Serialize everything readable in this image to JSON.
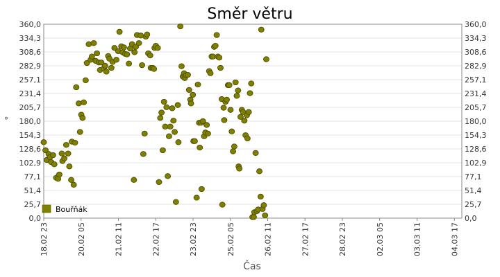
{
  "chart_data": {
    "type": "scatter",
    "title": "Směr větru",
    "xlabel": "Čas",
    "ylabel": "°",
    "ylim": [
      0,
      360
    ],
    "yticks": [
      "0,0",
      "25,7",
      "51,4",
      "77,1",
      "102,9",
      "128,6",
      "154,3",
      "180,0",
      "205,7",
      "231,4",
      "257,1",
      "282,9",
      "308,6",
      "334,3",
      "360,0"
    ],
    "x_tick_labels": [
      "18.02 23",
      "20.02 05",
      "21.02 11",
      "22.02 17",
      "23.02 23",
      "25.02 05",
      "26.02 11",
      "27.02 17",
      "28.02 23",
      "02.03 05",
      "03.03 11",
      "04.03 17"
    ],
    "x_tick_times": [
      "2023-02-18 23:00",
      "2023-02-20 05:00",
      "2023-02-21 11:00",
      "2023-02-22 17:00",
      "2023-02-23 23:00",
      "2023-02-25 05:00",
      "2023-02-26 11:00",
      "2023-02-27 17:00",
      "2023-02-28 23:00",
      "2023-03-02 05:00",
      "2023-03-03 11:00",
      "2023-03-04 17:00"
    ],
    "x_range": [
      "2023-02-18 23:00",
      "2023-03-04 23:00"
    ],
    "grid": true,
    "legend_position": "bottom-left",
    "series": [
      {
        "name": "Bouřňák",
        "color": "#808000",
        "points": [
          {
            "x": "2023-02-18 23:00",
            "y": 141
          },
          {
            "x": "2023-02-19 00:26",
            "y": 126
          },
          {
            "x": "2023-02-19 01:27",
            "y": 108
          },
          {
            "x": "2023-02-19 02:57",
            "y": 119
          },
          {
            "x": "2023-02-19 03:58",
            "y": 113
          },
          {
            "x": "2023-02-19 04:58",
            "y": 104
          },
          {
            "x": "2023-02-19 06:29",
            "y": 117
          },
          {
            "x": "2023-02-19 07:29",
            "y": 100
          },
          {
            "x": "2023-02-19 09:00",
            "y": 75
          },
          {
            "x": "2023-02-19 10:31",
            "y": 73
          },
          {
            "x": "2023-02-19 11:31",
            "y": 81
          },
          {
            "x": "2023-02-19 13:32",
            "y": 120
          },
          {
            "x": "2023-02-19 14:03",
            "y": 106
          },
          {
            "x": "2023-02-19 15:33",
            "y": 111
          },
          {
            "x": "2023-02-19 17:04",
            "y": 136
          },
          {
            "x": "2023-02-19 18:34",
            "y": 120
          },
          {
            "x": "2023-02-19 19:35",
            "y": 96
          },
          {
            "x": "2023-02-19 21:05",
            "y": 71
          },
          {
            "x": "2023-02-19 21:36",
            "y": 142
          },
          {
            "x": "2023-02-19 23:06",
            "y": 62
          },
          {
            "x": "2023-02-20 00:06",
            "y": 140
          },
          {
            "x": "2023-02-20 01:07",
            "y": 243
          },
          {
            "x": "2023-02-20 03:08",
            "y": 213
          },
          {
            "x": "2023-02-20 04:09",
            "y": 160
          },
          {
            "x": "2023-02-20 05:09",
            "y": 192
          },
          {
            "x": "2023-02-20 06:10",
            "y": 186
          },
          {
            "x": "2023-02-20 07:10",
            "y": 215
          },
          {
            "x": "2023-02-20 08:41",
            "y": 256
          },
          {
            "x": "2023-02-20 09:41",
            "y": 288
          },
          {
            "x": "2023-02-20 11:12",
            "y": 323
          },
          {
            "x": "2023-02-20 12:42",
            "y": 294
          },
          {
            "x": "2023-02-20 13:43",
            "y": 300
          },
          {
            "x": "2023-02-20 15:13",
            "y": 325
          },
          {
            "x": "2023-02-20 16:44",
            "y": 292
          },
          {
            "x": "2023-02-20 17:45",
            "y": 306
          },
          {
            "x": "2023-02-20 19:15",
            "y": 289
          },
          {
            "x": "2023-02-20 20:16",
            "y": 275
          },
          {
            "x": "2023-02-20 21:16",
            "y": 289
          },
          {
            "x": "2023-02-20 23:17",
            "y": 278
          },
          {
            "x": "2023-02-21 00:18",
            "y": 283
          },
          {
            "x": "2023-02-21 01:18",
            "y": 272
          },
          {
            "x": "2023-02-21 02:49",
            "y": 301
          },
          {
            "x": "2023-02-21 03:49",
            "y": 296
          },
          {
            "x": "2023-02-21 05:20",
            "y": 279
          },
          {
            "x": "2023-02-21 06:20",
            "y": 290
          },
          {
            "x": "2023-02-21 07:51",
            "y": 316
          },
          {
            "x": "2023-02-21 09:21",
            "y": 294
          },
          {
            "x": "2023-02-21 10:52",
            "y": 310
          },
          {
            "x": "2023-02-21 11:53",
            "y": 346
          },
          {
            "x": "2023-02-21 13:23",
            "y": 319
          },
          {
            "x": "2023-02-21 14:24",
            "y": 308
          },
          {
            "x": "2023-02-21 15:24",
            "y": 317
          },
          {
            "x": "2023-02-21 16:25",
            "y": 305
          },
          {
            "x": "2023-02-21 17:56",
            "y": 304
          },
          {
            "x": "2023-02-21 19:26",
            "y": 287
          },
          {
            "x": "2023-02-21 20:27",
            "y": 315
          },
          {
            "x": "2023-02-21 21:57",
            "y": 323
          },
          {
            "x": "2023-02-21 23:28",
            "y": 71
          },
          {
            "x": "2023-02-21 23:58",
            "y": 308
          },
          {
            "x": "2023-02-22 00:59",
            "y": 318
          },
          {
            "x": "2023-02-22 01:59",
            "y": 340
          },
          {
            "x": "2023-02-22 03:30",
            "y": 325
          },
          {
            "x": "2023-02-22 05:00",
            "y": 339
          },
          {
            "x": "2023-02-22 06:01",
            "y": 284
          },
          {
            "x": "2023-02-22 07:01",
            "y": 119
          },
          {
            "x": "2023-02-22 08:02",
            "y": 157
          },
          {
            "x": "2023-02-22 09:02",
            "y": 337
          },
          {
            "x": "2023-02-22 10:03",
            "y": 341
          },
          {
            "x": "2023-02-22 11:03",
            "y": 306
          },
          {
            "x": "2023-02-22 12:34",
            "y": 302
          },
          {
            "x": "2023-02-22 13:04",
            "y": 279
          },
          {
            "x": "2023-02-22 14:35",
            "y": 279
          },
          {
            "x": "2023-02-22 15:35",
            "y": 277
          },
          {
            "x": "2023-02-22 16:06",
            "y": 316
          },
          {
            "x": "2023-02-22 17:06",
            "y": 320
          },
          {
            "x": "2023-02-22 18:37",
            "y": 316
          },
          {
            "x": "2023-02-22 19:38",
            "y": 67
          },
          {
            "x": "2023-02-22 20:38",
            "y": 186
          },
          {
            "x": "2023-02-22 21:39",
            "y": 196
          },
          {
            "x": "2023-02-22 22:39",
            "y": 126
          },
          {
            "x": "2023-02-22 23:40",
            "y": 216
          },
          {
            "x": "2023-02-23 00:40",
            "y": 170
          },
          {
            "x": "2023-02-23 01:41",
            "y": 206
          },
          {
            "x": "2023-02-23 02:41",
            "y": 78
          },
          {
            "x": "2023-02-23 03:42",
            "y": 152
          },
          {
            "x": "2023-02-23 04:42",
            "y": 170
          },
          {
            "x": "2023-02-23 06:13",
            "y": 204
          },
          {
            "x": "2023-02-23 07:13",
            "y": 181
          },
          {
            "x": "2023-02-23 08:14",
            "y": 160
          },
          {
            "x": "2023-02-23 09:14",
            "y": 30
          },
          {
            "x": "2023-02-23 10:45",
            "y": 210
          },
          {
            "x": "2023-02-23 11:15",
            "y": 141
          },
          {
            "x": "2023-02-23 12:46",
            "y": 356
          },
          {
            "x": "2023-02-23 13:46",
            "y": 282
          },
          {
            "x": "2023-02-23 14:47",
            "y": 263
          },
          {
            "x": "2023-02-23 15:47",
            "y": 269
          },
          {
            "x": "2023-02-23 16:18",
            "y": 260
          },
          {
            "x": "2023-02-23 17:18",
            "y": 265
          },
          {
            "x": "2023-02-23 18:49",
            "y": 266
          },
          {
            "x": "2023-02-23 19:49",
            "y": 238
          },
          {
            "x": "2023-02-23 20:50",
            "y": 220
          },
          {
            "x": "2023-02-23 21:20",
            "y": 213
          },
          {
            "x": "2023-02-23 22:51",
            "y": 229
          },
          {
            "x": "2023-02-23 23:21",
            "y": 143
          },
          {
            "x": "2023-02-24 00:22",
            "y": 143
          },
          {
            "x": "2023-02-24 01:52",
            "y": 38
          },
          {
            "x": "2023-02-24 02:53",
            "y": 248
          },
          {
            "x": "2023-02-24 03:53",
            "y": 177
          },
          {
            "x": "2023-02-24 04:24",
            "y": 131
          },
          {
            "x": "2023-02-24 05:24",
            "y": 177
          },
          {
            "x": "2023-02-24 05:54",
            "y": 54
          },
          {
            "x": "2023-02-24 06:55",
            "y": 180
          },
          {
            "x": "2023-02-24 07:56",
            "y": 152
          },
          {
            "x": "2023-02-24 08:56",
            "y": 159
          },
          {
            "x": "2023-02-24 09:57",
            "y": 173
          },
          {
            "x": "2023-02-24 10:57",
            "y": 157
          },
          {
            "x": "2023-02-24 11:58",
            "y": 273
          },
          {
            "x": "2023-02-24 12:58",
            "y": 269
          },
          {
            "x": "2023-02-24 13:59",
            "y": 300
          },
          {
            "x": "2023-02-24 14:59",
            "y": 300
          },
          {
            "x": "2023-02-24 16:00",
            "y": 318
          },
          {
            "x": "2023-02-24 17:00",
            "y": 320
          },
          {
            "x": "2023-02-24 18:01",
            "y": 340
          },
          {
            "x": "2023-02-24 19:01",
            "y": 300
          },
          {
            "x": "2023-02-24 20:02",
            "y": 298
          },
          {
            "x": "2023-02-24 21:02",
            "y": 279
          },
          {
            "x": "2023-02-24 22:03",
            "y": 221
          },
          {
            "x": "2023-02-24 22:33",
            "y": 25
          },
          {
            "x": "2023-02-24 23:34",
            "y": 205
          },
          {
            "x": "2023-02-25 00:04",
            "y": 182
          },
          {
            "x": "2023-02-25 01:05",
            "y": 216
          },
          {
            "x": "2023-02-25 02:05",
            "y": 220
          },
          {
            "x": "2023-02-25 03:06",
            "y": 247
          },
          {
            "x": "2023-02-25 04:06",
            "y": 247
          },
          {
            "x": "2023-02-25 05:07",
            "y": 201
          },
          {
            "x": "2023-02-25 06:07",
            "y": 161
          },
          {
            "x": "2023-02-25 07:08",
            "y": 124
          },
          {
            "x": "2023-02-25 08:08",
            "y": 133
          },
          {
            "x": "2023-02-25 09:09",
            "y": 252
          },
          {
            "x": "2023-02-25 10:09",
            "y": 227
          },
          {
            "x": "2023-02-25 11:10",
            "y": 237
          },
          {
            "x": "2023-02-25 11:40",
            "y": 96
          },
          {
            "x": "2023-02-25 12:11",
            "y": 92
          },
          {
            "x": "2023-02-25 13:11",
            "y": 188
          },
          {
            "x": "2023-02-25 14:12",
            "y": 201
          },
          {
            "x": "2023-02-25 15:12",
            "y": 197
          },
          {
            "x": "2023-02-25 16:13",
            "y": 181
          },
          {
            "x": "2023-02-25 17:13",
            "y": 154
          },
          {
            "x": "2023-02-25 18:14",
            "y": 191
          },
          {
            "x": "2023-02-25 18:44",
            "y": 148
          },
          {
            "x": "2023-02-25 19:45",
            "y": 197
          },
          {
            "x": "2023-02-25 20:45",
            "y": 232
          },
          {
            "x": "2023-02-25 21:46",
            "y": 250
          },
          {
            "x": "2023-02-25 22:46",
            "y": 2
          },
          {
            "x": "2023-02-25 23:47",
            "y": 2
          },
          {
            "x": "2023-02-26 00:17",
            "y": 11
          },
          {
            "x": "2023-02-26 01:18",
            "y": 121
          },
          {
            "x": "2023-02-26 02:18",
            "y": 13
          },
          {
            "x": "2023-02-26 03:19",
            "y": 16
          },
          {
            "x": "2023-02-26 04:19",
            "y": 87
          },
          {
            "x": "2023-02-26 05:20",
            "y": 40
          },
          {
            "x": "2023-02-26 05:50",
            "y": 350
          },
          {
            "x": "2023-02-26 06:51",
            "y": 17
          },
          {
            "x": "2023-02-26 07:51",
            "y": 24
          },
          {
            "x": "2023-02-26 08:52",
            "y": 5
          },
          {
            "x": "2023-02-26 09:52",
            "y": 295
          }
        ]
      }
    ]
  }
}
